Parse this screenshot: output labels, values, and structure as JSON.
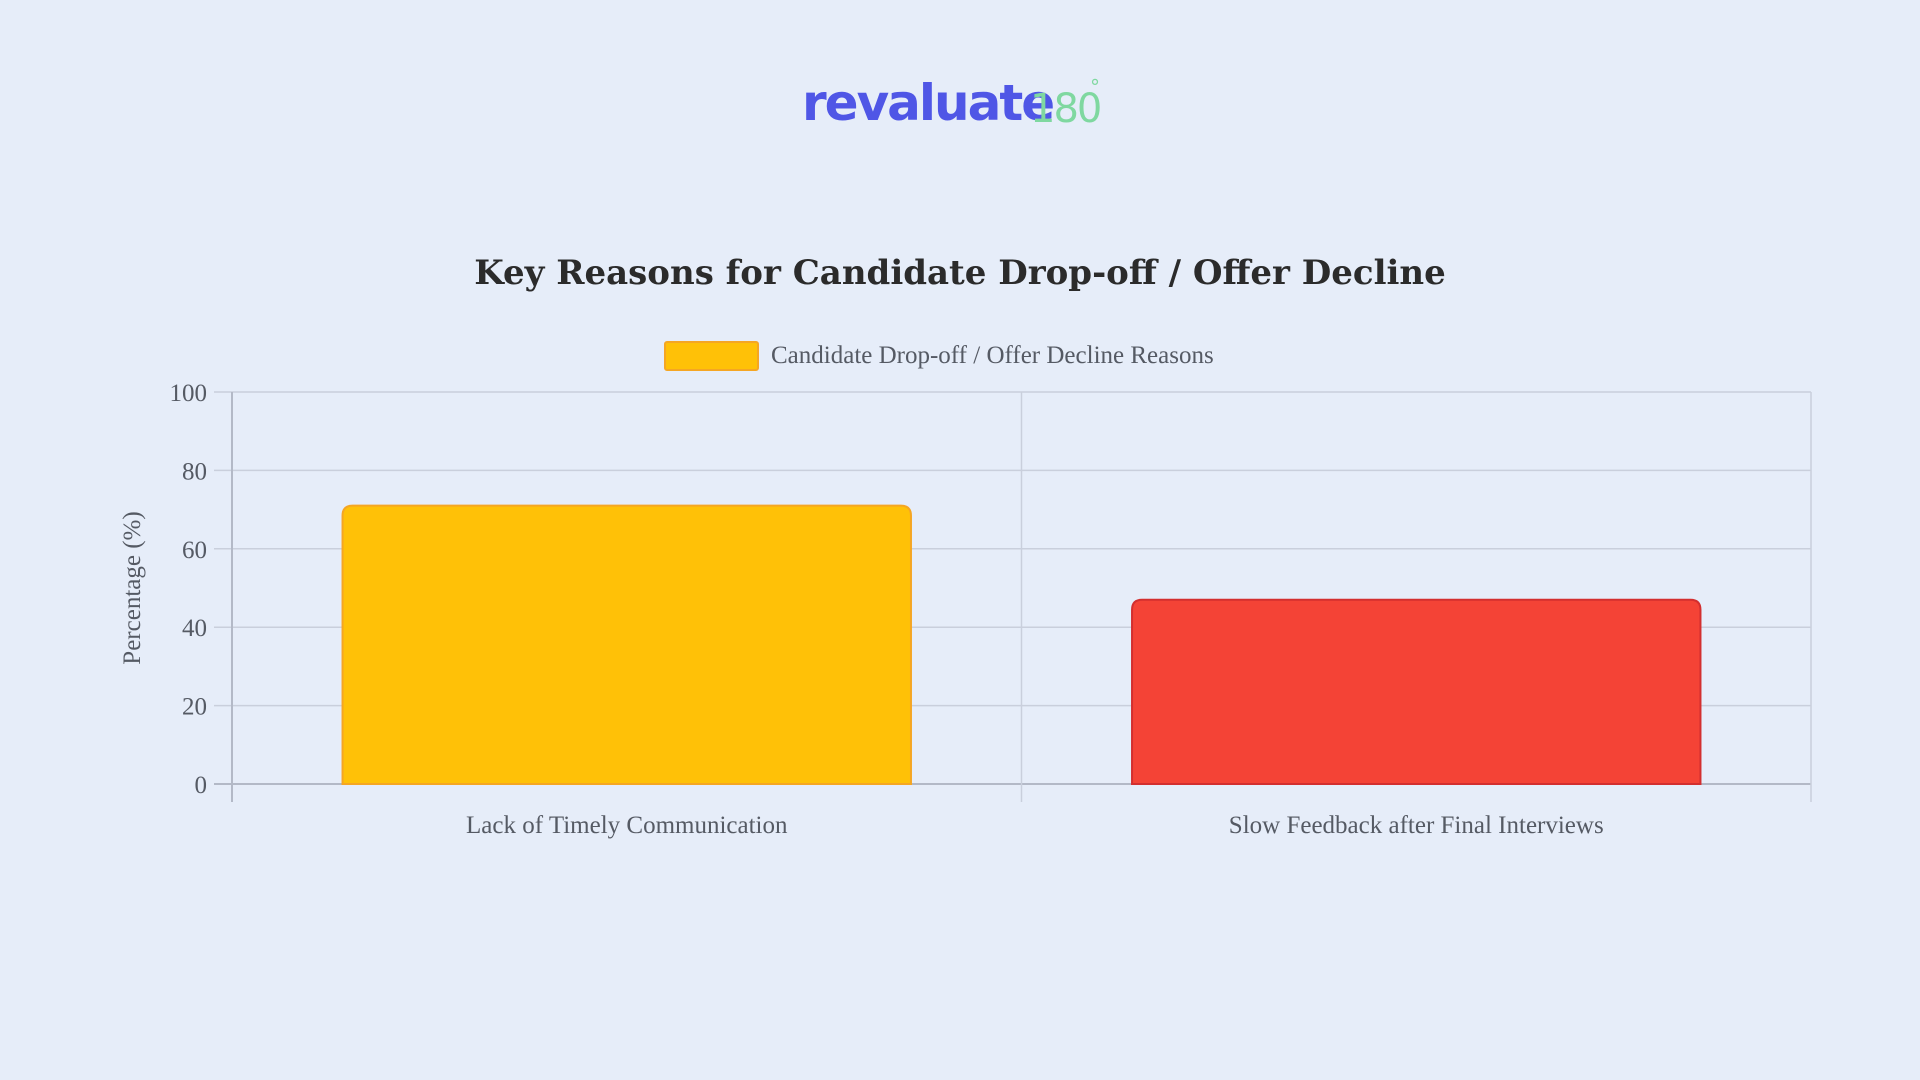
{
  "logo": {
    "main": "revaluate",
    "sub": "180",
    "degree": "°",
    "main_color": "#4f56e6",
    "sub_color": "#7fd8a0"
  },
  "chart_data": {
    "type": "bar",
    "title": "Key Reasons for Candidate Drop-off / Offer Decline",
    "categories": [
      "Lack of Timely Communication",
      "Slow Feedback after Final Interviews"
    ],
    "series": [
      {
        "name": "Candidate Drop-off / Offer Decline Reasons",
        "values": [
          71,
          47
        ],
        "colors": [
          "#ffc107",
          "#f44336"
        ],
        "border_colors": [
          "#f5a623",
          "#d32f2f"
        ]
      }
    ],
    "legend_color": "#ffc107",
    "xlabel": "",
    "ylabel": "Percentage (%)",
    "ylim": [
      0,
      100
    ],
    "yticks": [
      0,
      20,
      40,
      60,
      80,
      100
    ],
    "grid": true,
    "legend_position": "top"
  }
}
